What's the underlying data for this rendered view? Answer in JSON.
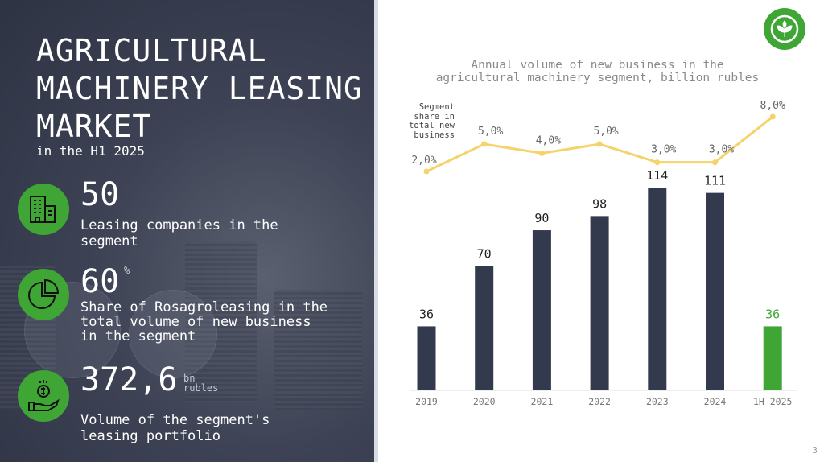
{
  "title": "AGRICULTURAL MACHINERY LEASING MARKET",
  "subtitle": "in the H1 2025",
  "stats": [
    {
      "value": "50",
      "unit": "",
      "label": "Leasing companies in the segment",
      "icon": "buildings-icon"
    },
    {
      "value": "60",
      "unit": "%",
      "label": "Share of Rosagroleasing in the total volume of new business in the segment",
      "icon": "pie-chart-icon"
    },
    {
      "value": "372,6",
      "unit": "bn rubles",
      "label": "Volume of the segment's leasing portfolio",
      "icon": "money-hand-icon"
    }
  ],
  "page_number": "3",
  "colors": {
    "bar": "#343a4e",
    "bar_highlight": "#3fa535",
    "line": "#f5d36b",
    "green": "#3fa535"
  },
  "chart_data": {
    "type": "bar",
    "title": "Annual volume of new business in the agricultural machinery segment, billion rubles",
    "categories": [
      "2019",
      "2020",
      "2021",
      "2022",
      "2023",
      "2024",
      "1H 2025"
    ],
    "series": [
      {
        "name": "New business volume, bn rubles",
        "type": "bar",
        "values": [
          36,
          70,
          90,
          98,
          114,
          111,
          36
        ],
        "labels": [
          "36",
          "70",
          "90",
          "98",
          "114",
          "111",
          "36"
        ],
        "highlight_index": 6
      },
      {
        "name": "Segment share in total new business",
        "type": "line",
        "values": [
          2.0,
          5.0,
          4.0,
          5.0,
          3.0,
          3.0,
          8.0
        ],
        "labels": [
          "2,0%",
          "5,0%",
          "4,0%",
          "5,0%",
          "3,0%",
          "3,0%",
          "8,0%"
        ]
      }
    ],
    "line_label": "Segment share in total new business",
    "ylim": [
      0,
      114
    ]
  }
}
